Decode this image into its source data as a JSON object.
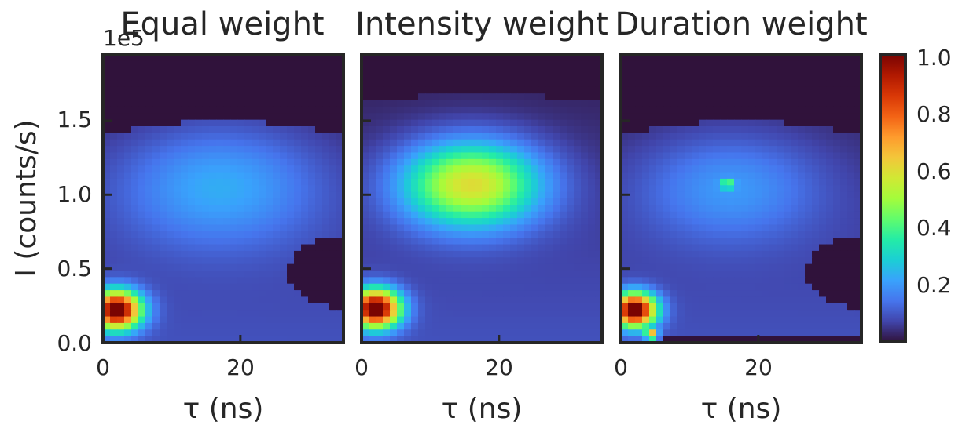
{
  "chart_data": {
    "type": "heatmap",
    "shared": {
      "xlabel": "τ (ns)",
      "ylabel": "I (counts/s)",
      "y_multiplier": "1e5",
      "xlim": [
        0,
        35
      ],
      "ylim": [
        0,
        1.95
      ],
      "xticks": [
        0,
        20
      ],
      "xticklabels": [
        "0",
        "20"
      ],
      "yticks": [
        0.0,
        0.5,
        1.0,
        1.5
      ],
      "yticklabels": [
        "0.0",
        "0.5",
        "1.0",
        "1.5"
      ],
      "grid": false,
      "background_color": "#30123b"
    },
    "panels": [
      {
        "title": "Equal weight",
        "hotspots": [
          {
            "x": 2,
            "y": 0.22,
            "value": 1.0,
            "sx": 2.5,
            "sy": 0.09
          },
          {
            "x": 17,
            "y": 1.06,
            "value": 0.18,
            "sx": 10,
            "sy": 0.28
          }
        ]
      },
      {
        "title": "Intensity weight",
        "hotspots": [
          {
            "x": 2,
            "y": 0.23,
            "value": 1.0,
            "sx": 2.5,
            "sy": 0.09
          },
          {
            "x": 16,
            "y": 1.07,
            "value": 0.55,
            "sx": 7,
            "sy": 0.2
          }
        ]
      },
      {
        "title": "Duration weight",
        "hotspots": [
          {
            "x": 2,
            "y": 0.22,
            "value": 1.0,
            "sx": 2.2,
            "sy": 0.08
          },
          {
            "x": 16,
            "y": 1.05,
            "value": 0.15,
            "sx": 9,
            "sy": 0.25
          },
          {
            "x": 15.5,
            "y": 1.07,
            "value": 0.35,
            "sx": 0.6,
            "sy": 0.02
          },
          {
            "x": 4.5,
            "y": 0.05,
            "value": 0.7,
            "sx": 0.6,
            "sy": 0.02
          }
        ]
      }
    ],
    "colorbar": {
      "range": [
        0.0,
        1.0
      ],
      "ticks": [
        0.2,
        0.4,
        0.6,
        0.8,
        1.0
      ],
      "ticklabels": [
        "0.2",
        "0.4",
        "0.6",
        "0.8",
        "1.0"
      ],
      "colormap": [
        "#30123b",
        "#4145ab",
        "#4675ed",
        "#39a2fc",
        "#1bcfd4",
        "#24eca6",
        "#61fc6c",
        "#a4fc3b",
        "#d1e834",
        "#f3c63a",
        "#fe9b2d",
        "#f36315",
        "#d93806",
        "#b11901",
        "#7a0402"
      ]
    }
  }
}
